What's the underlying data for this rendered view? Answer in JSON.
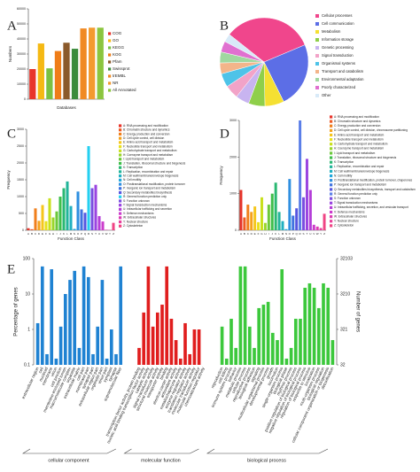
{
  "chart_data": [
    {
      "type": "bar",
      "panel": "A",
      "x_label": "Databases",
      "y_label": "Numbers",
      "categories": [
        "COG",
        "GO",
        "KEGG",
        "KOG",
        "Pfam",
        "Swissprot",
        "trEMBL",
        "NR",
        "All Annotated"
      ],
      "values": [
        20000,
        37000,
        20500,
        32000,
        37500,
        33500,
        47000,
        47500,
        47500
      ],
      "colors": [
        "#e8342a",
        "#f5b914",
        "#7ac143",
        "#ef7d18",
        "#8b5a2b",
        "#3c8c3c",
        "#f08a24",
        "#f39a2e",
        "#8bc53f"
      ],
      "ylim": [
        0,
        60000
      ],
      "yticks": [
        0,
        10000,
        20000,
        30000,
        40000,
        50000,
        60000
      ]
    },
    {
      "type": "pie",
      "panel": "B",
      "categories": [
        "Cellular processes",
        "Cell communication",
        "Metabolism",
        "Information storage",
        "Genetic processing",
        "Signal transduction",
        "Organismal systems",
        "Transport and catabolism",
        "Environmental adaptation",
        "Poorly characterized",
        "Other"
      ],
      "values": [
        33,
        24,
        7,
        6,
        5,
        5,
        5,
        4,
        4,
        4,
        3
      ],
      "colors": [
        "#f0468c",
        "#5c6ee6",
        "#f5e032",
        "#8fcf4a",
        "#c8b4f0",
        "#f2a3c8",
        "#4ec3e8",
        "#f3b58a",
        "#a0d8a0",
        "#e070d0",
        "#d8eaf8"
      ]
    },
    {
      "type": "bar",
      "panel": "C",
      "x_label": "Function Class",
      "y_label": "Frequency",
      "categories": [
        "A",
        "B",
        "C",
        "D",
        "E",
        "F",
        "G",
        "H",
        "I",
        "J",
        "K",
        "L",
        "M",
        "N",
        "O",
        "P",
        "Q",
        "R",
        "S",
        "T",
        "U",
        "V",
        "W",
        "Y",
        "Z"
      ],
      "legend": [
        "A: RNA processing and modification",
        "B: Chromatin structure and dynamics",
        "C: Energy production and conversion",
        "D: Cell cycle control, cell division",
        "E: Amino acid transport and metabolism",
        "F: Nucleotide transport and metabolism",
        "G: Carbohydrate transport and metabolism",
        "H: Coenzyme transport and metabolism",
        "I: Lipid transport and metabolism",
        "J: Translation, ribosomal structure and biogenesis",
        "K: Transcription",
        "L: Replication, recombination and repair",
        "M: Cell wall/membrane/envelope biogenesis",
        "N: Cell motility",
        "O: Posttranslational modification, protein turnover",
        "P: Inorganic ion transport and metabolism",
        "Q: Secondary metabolites biosynthesis",
        "R: General function prediction only",
        "S: Function unknown",
        "T: Signal transduction mechanisms",
        "U: Intracellular trafficking and secretion",
        "V: Defense mechanisms",
        "W: Extracellular structures",
        "Y: Nuclear structure",
        "Z: Cytoskeleton"
      ],
      "values": [
        60,
        30,
        650,
        280,
        750,
        270,
        950,
        380,
        560,
        1000,
        1250,
        1450,
        720,
        40,
        1150,
        620,
        520,
        2500,
        1250,
        1350,
        420,
        260,
        15,
        8,
        220
      ],
      "colors": [
        "#e8342a",
        "#ee5a24",
        "#f07f1c",
        "#f5a21c",
        "#f5c61c",
        "#e8e01c",
        "#c8e01c",
        "#9ad62a",
        "#6cc83a",
        "#3fbe4a",
        "#2ab872",
        "#22b49a",
        "#20b0c0",
        "#22a8dc",
        "#2f8fe0",
        "#3f72e0",
        "#5656e0",
        "#24d0f0",
        "#7a4ee0",
        "#9a44e0",
        "#b43ed8",
        "#cc3ccc",
        "#dc3cb4",
        "#e8409c",
        "#f04484"
      ],
      "ylim": [
        0,
        3000
      ],
      "yticks": [
        0,
        500,
        1000,
        1500,
        2000,
        2500,
        3000
      ]
    },
    {
      "type": "bar",
      "panel": "D",
      "x_label": "Function Class",
      "y_label": "Frequency",
      "categories": [
        "A",
        "B",
        "C",
        "D",
        "E",
        "F",
        "G",
        "H",
        "I",
        "J",
        "K",
        "L",
        "M",
        "N",
        "O",
        "P",
        "Q",
        "R",
        "S",
        "T",
        "U",
        "V",
        "W",
        "Y",
        "Z"
      ],
      "legend": [
        "A: RNA processing and modification",
        "B: Chromatin structure and dynamics",
        "C: Energy production and conversion",
        "D: Cell cycle control, cell division, chromosome partitioning",
        "E: Amino acid transport and metabolism",
        "F: Nucleotide transport and metabolism",
        "G: Carbohydrate transport and metabolism",
        "H: Coenzyme transport and metabolism",
        "I: Lipid transport and metabolism",
        "J: Translation, ribosomal structure and biogenesis",
        "K: Transcription",
        "L: Replication, recombination and repair",
        "M: Cell wall/membrane/envelope biogenesis",
        "N: Cell motility",
        "O: Posttranslational modification, protein turnover, chaperones",
        "P: Inorganic ion transport and metabolism",
        "Q: Secondary metabolites biosynthesis, transport and catabolism",
        "R: General function prediction only",
        "S: Function unknown",
        "T: Signal transduction mechanisms",
        "U: Intracellular trafficking, secretion, and vesicular transport",
        "V: Defense mechanisms",
        "W: Extracellular structures",
        "Y: Nuclear structure",
        "Z: Cytoskeleton"
      ],
      "values": [
        1100,
        350,
        700,
        500,
        650,
        220,
        900,
        200,
        700,
        1000,
        1300,
        500,
        250,
        30,
        1400,
        400,
        600,
        3000,
        900,
        1950,
        1100,
        150,
        100,
        60,
        450
      ],
      "colors": [
        "#e8342a",
        "#ee5a24",
        "#f07f1c",
        "#f5a21c",
        "#f5c61c",
        "#e8e01c",
        "#c8e01c",
        "#9ad62a",
        "#6cc83a",
        "#3fbe4a",
        "#2ab872",
        "#22b49a",
        "#20b0c0",
        "#22a8dc",
        "#2f8fe0",
        "#3f72e0",
        "#5656e0",
        "#5a7ee8",
        "#7a4ee0",
        "#9a44e0",
        "#b43ed8",
        "#cc3ccc",
        "#dc3cb4",
        "#e8409c",
        "#f04484"
      ],
      "ylim": [
        0,
        3000
      ],
      "yticks": [
        0,
        1000,
        2000,
        3000
      ]
    },
    {
      "type": "grouped-log-bar",
      "panel": "E",
      "y_label": "Percentage of genes",
      "y2_label": "Number of genes",
      "ylim": [
        0.1,
        100
      ],
      "yticks": [
        0.1,
        1,
        10,
        100
      ],
      "y2lim": [
        32,
        32103
      ],
      "y2ticks": [
        32,
        321,
        3210,
        32103
      ],
      "groups": [
        {
          "name": "cellular component",
          "color": "#1f82d2",
          "categories": [
            "extracellular region",
            "cell",
            "nucleoid",
            "membrane",
            "virion",
            "cell junction",
            "membrane-enclosed lumen",
            "macromolecular complex",
            "organelle",
            "extracellular matrix",
            "cell part",
            "membrane part",
            "synapse part",
            "extracellular region part",
            "organelle part",
            "virion part",
            "symplast",
            "synapse",
            "supramolecular fiber"
          ],
          "values": [
            1.5,
            60,
            0.2,
            50,
            0.15,
            1.2,
            10,
            25,
            45,
            0.3,
            60,
            30,
            0.2,
            1.2,
            25,
            0.15,
            1,
            0.2,
            60
          ]
        },
        {
          "name": "molecular function",
          "color": "#e01e1e",
          "categories": [
            "transcription factor activity, protein binding",
            "nucleic acid binding transcription factor activity",
            "catalytic activity",
            "signal transducer activity",
            "structural molecule activity",
            "transporter activity",
            "binding",
            "electron carrier activity",
            "antioxidant activity",
            "metallochaperone activity",
            "enzyme regulator activity",
            "translation regulator activity",
            "molecular transducer activity",
            "molecular function regulator",
            "chemoattractant activity"
          ],
          "values": [
            0.3,
            3,
            60,
            1.2,
            3,
            5,
            60,
            2,
            0.5,
            0.15,
            1.5,
            0.2,
            1,
            1,
            0.1
          ]
        },
        {
          "name": "biological process",
          "color": "#3cc83c",
          "categories": [
            "reproduction",
            "cell killing",
            "immune system process",
            "behavior",
            "metabolic process",
            "cellular process",
            "reproductive process",
            "biological adhesion",
            "signaling",
            "multicellular organismal process",
            "developmental process",
            "growth",
            "locomotion",
            "single-organism process",
            "biological phase",
            "rhythmic process",
            "positive regulation of biological process",
            "negative regulation of biological process",
            "regulation of biological process",
            "response to stimulus",
            "localization",
            "multi-organism process",
            "biological regulation",
            "cellular component organization or biogenesis",
            "detoxification"
          ],
          "values": [
            1.2,
            0.15,
            2,
            0.3,
            60,
            60,
            1.2,
            0.3,
            4,
            5,
            6,
            0.8,
            0.5,
            50,
            0.15,
            0.3,
            2,
            2,
            15,
            20,
            15,
            4,
            20,
            15,
            0.5
          ]
        }
      ]
    }
  ]
}
